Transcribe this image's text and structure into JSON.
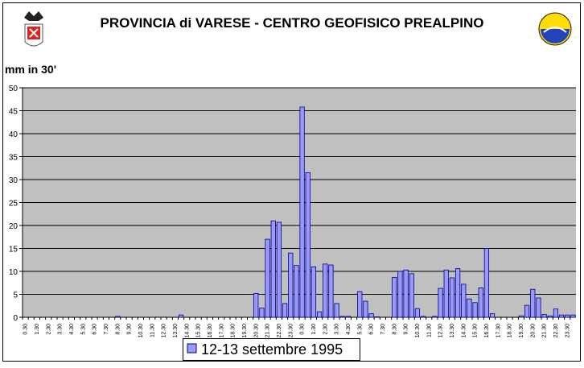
{
  "chart_data": {
    "type": "bar",
    "title": "PROVINCIA di VARESE - CENTRO GEOFISICO PREALPINO",
    "y_label": "mm in 30'",
    "categories": [
      "0.30",
      null,
      "1.30",
      null,
      "2.30",
      null,
      "3.30",
      null,
      "4.30",
      null,
      "5.30",
      null,
      "6.30",
      null,
      "7.30",
      null,
      "8.30",
      null,
      "9.30",
      null,
      "10.30",
      null,
      "11.30",
      null,
      "12.30",
      null,
      "13.30",
      null,
      "14.30",
      null,
      "15.30",
      null,
      "16.30",
      null,
      "17.30",
      null,
      "18.30",
      null,
      "19.30",
      null,
      "20.30",
      null,
      "21.30",
      null,
      "22.30",
      null,
      "23.30",
      null,
      "0.30",
      null,
      "1.30",
      null,
      "2.30",
      null,
      "3.30",
      null,
      "4.30",
      null,
      "5.30",
      null,
      "6.30",
      null,
      "7.30",
      null,
      "8.30",
      null,
      "9.30",
      null,
      "10.30",
      null,
      "11.30",
      null,
      "12.30",
      null,
      "13.30",
      null,
      "14.30",
      null,
      "15.30",
      null,
      "16.30",
      null,
      "17.30",
      null,
      "18.30",
      null,
      "19.30",
      null,
      "20.30",
      null,
      "21.30",
      null,
      "22.30",
      null,
      "23.30",
      null
    ],
    "series": [
      {
        "name": "12-13 settembre 1995",
        "color": "#9999ff",
        "values": [
          0,
          0,
          0,
          0,
          0,
          0,
          0,
          0,
          0,
          0,
          0,
          0,
          0,
          0,
          0,
          0,
          0.2,
          0,
          0,
          0,
          0,
          0,
          0,
          0,
          0,
          0,
          0,
          0.5,
          0,
          0,
          0,
          0,
          0,
          0,
          0,
          0,
          0,
          0,
          0,
          0,
          5.2,
          2,
          17,
          21,
          20.7,
          3,
          14,
          11.3,
          45.8,
          31.5,
          11,
          1.2,
          11.6,
          11.4,
          3,
          0.2,
          0.2,
          0,
          5.6,
          3.5,
          0.8,
          0.1,
          0,
          0,
          8.7,
          10,
          10.3,
          9.5,
          1.9,
          0.2,
          0,
          0.2,
          6.3,
          10.3,
          8.6,
          10.6,
          7.2,
          4,
          3.2,
          6.4,
          15,
          0.8,
          0,
          0,
          0,
          0,
          0.3,
          2.6,
          6.1,
          4.2,
          0.6,
          0.3,
          1.8,
          0.5,
          0.5,
          0.5
        ]
      }
    ],
    "ylim": [
      0,
      50
    ],
    "yticks": [
      0,
      5,
      10,
      15,
      20,
      25,
      30,
      35,
      40,
      45,
      50
    ],
    "grid": true,
    "legend": "bottom"
  }
}
